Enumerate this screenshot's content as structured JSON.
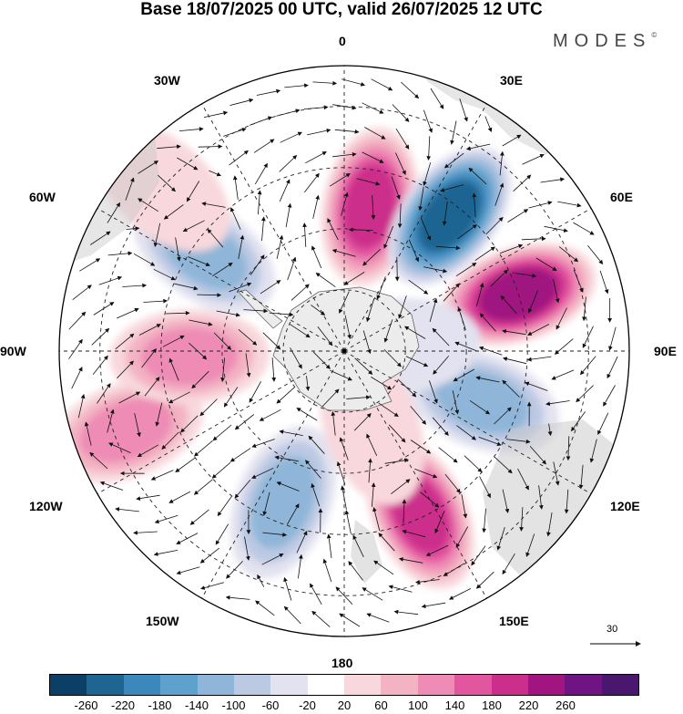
{
  "title": "Base 18/07/2025 00 UTC, valid 26/07/2025 12 UTC",
  "brand": "MODES",
  "brand_mark": "©",
  "longitude_labels": {
    "lon_0": "0",
    "lon_30e": "30E",
    "lon_60e": "60E",
    "lon_90e": "90E",
    "lon_120e": "120E",
    "lon_150e": "150E",
    "lon_180": "180",
    "lon_150w": "150W",
    "lon_120w": "120W",
    "lon_90w": "90W",
    "lon_60w": "60W",
    "lon_30w": "30W"
  },
  "vector_scale_label": "30",
  "colorbar": {
    "colors": [
      "#0b3f66",
      "#1f6592",
      "#3c87bb",
      "#5ea1cd",
      "#8fb6d8",
      "#bcc9e3",
      "#e2e2f0",
      "#ffffff",
      "#f8d8dd",
      "#f3b3c3",
      "#ee8cb5",
      "#e2559f",
      "#cc2e8c",
      "#a01580",
      "#6e1583",
      "#4a176f"
    ],
    "labels": [
      "-260",
      "-220",
      "-180",
      "-140",
      "-100",
      "-60",
      "-20",
      "20",
      "60",
      "100",
      "140",
      "180",
      "220",
      "260"
    ]
  },
  "anomaly_centers": [
    {
      "lon": 10,
      "colat": 36,
      "value": 220
    },
    {
      "lon": 38,
      "colat": 42,
      "value": -260
    },
    {
      "lon": 72,
      "colat": 45,
      "value": 260
    },
    {
      "lon": 110,
      "colat": 36,
      "value": -140
    },
    {
      "lon": 155,
      "colat": 44,
      "value": 220
    },
    {
      "lon": -158,
      "colat": 40,
      "value": -140
    },
    {
      "lon": -110,
      "colat": 57,
      "value": 140
    },
    {
      "lon": -92,
      "colat": 38,
      "value": 140
    },
    {
      "lon": -55,
      "colat": 42,
      "value": -140
    },
    {
      "lon": -48,
      "colat": 60,
      "value": 60
    },
    {
      "lon": 85,
      "colat": 14,
      "value": -40
    },
    {
      "lon": 160,
      "colat": 20,
      "value": 60
    }
  ],
  "colors": {
    "land_fill": "#c8c8c8",
    "antarctica_fill": "#ececec",
    "coast": "#666666",
    "arrow": "#111111",
    "grid": "#222222"
  }
}
